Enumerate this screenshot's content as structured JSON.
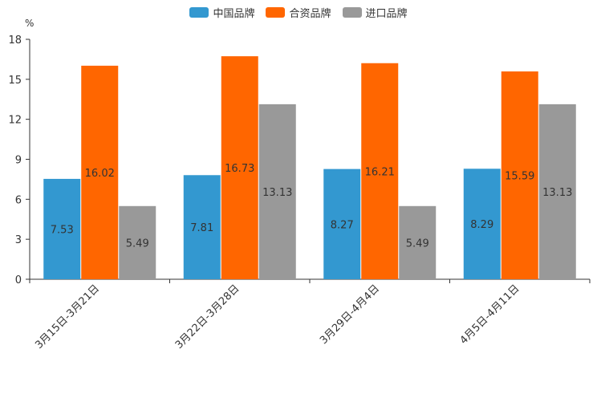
{
  "chart_data": {
    "type": "bar",
    "unit": "%",
    "categories": [
      "3月15日-3月21日",
      "3月22日-3月28日",
      "3月29日-4月4日",
      "4月5日-4月11日"
    ],
    "series": [
      {
        "name": "中国品牌",
        "color": "#3398d0",
        "values": [
          7.53,
          7.81,
          8.27,
          8.29
        ]
      },
      {
        "name": "合资品牌",
        "color": "#ff6600",
        "values": [
          16.02,
          16.73,
          16.21,
          15.59
        ]
      },
      {
        "name": "进口品牌",
        "color": "#999999",
        "values": [
          5.49,
          13.13,
          5.49,
          13.13
        ]
      }
    ],
    "yticks": [
      0,
      3,
      6,
      9,
      12,
      15,
      18
    ],
    "ylim": [
      0,
      18
    ],
    "legend_position": "top-center"
  }
}
